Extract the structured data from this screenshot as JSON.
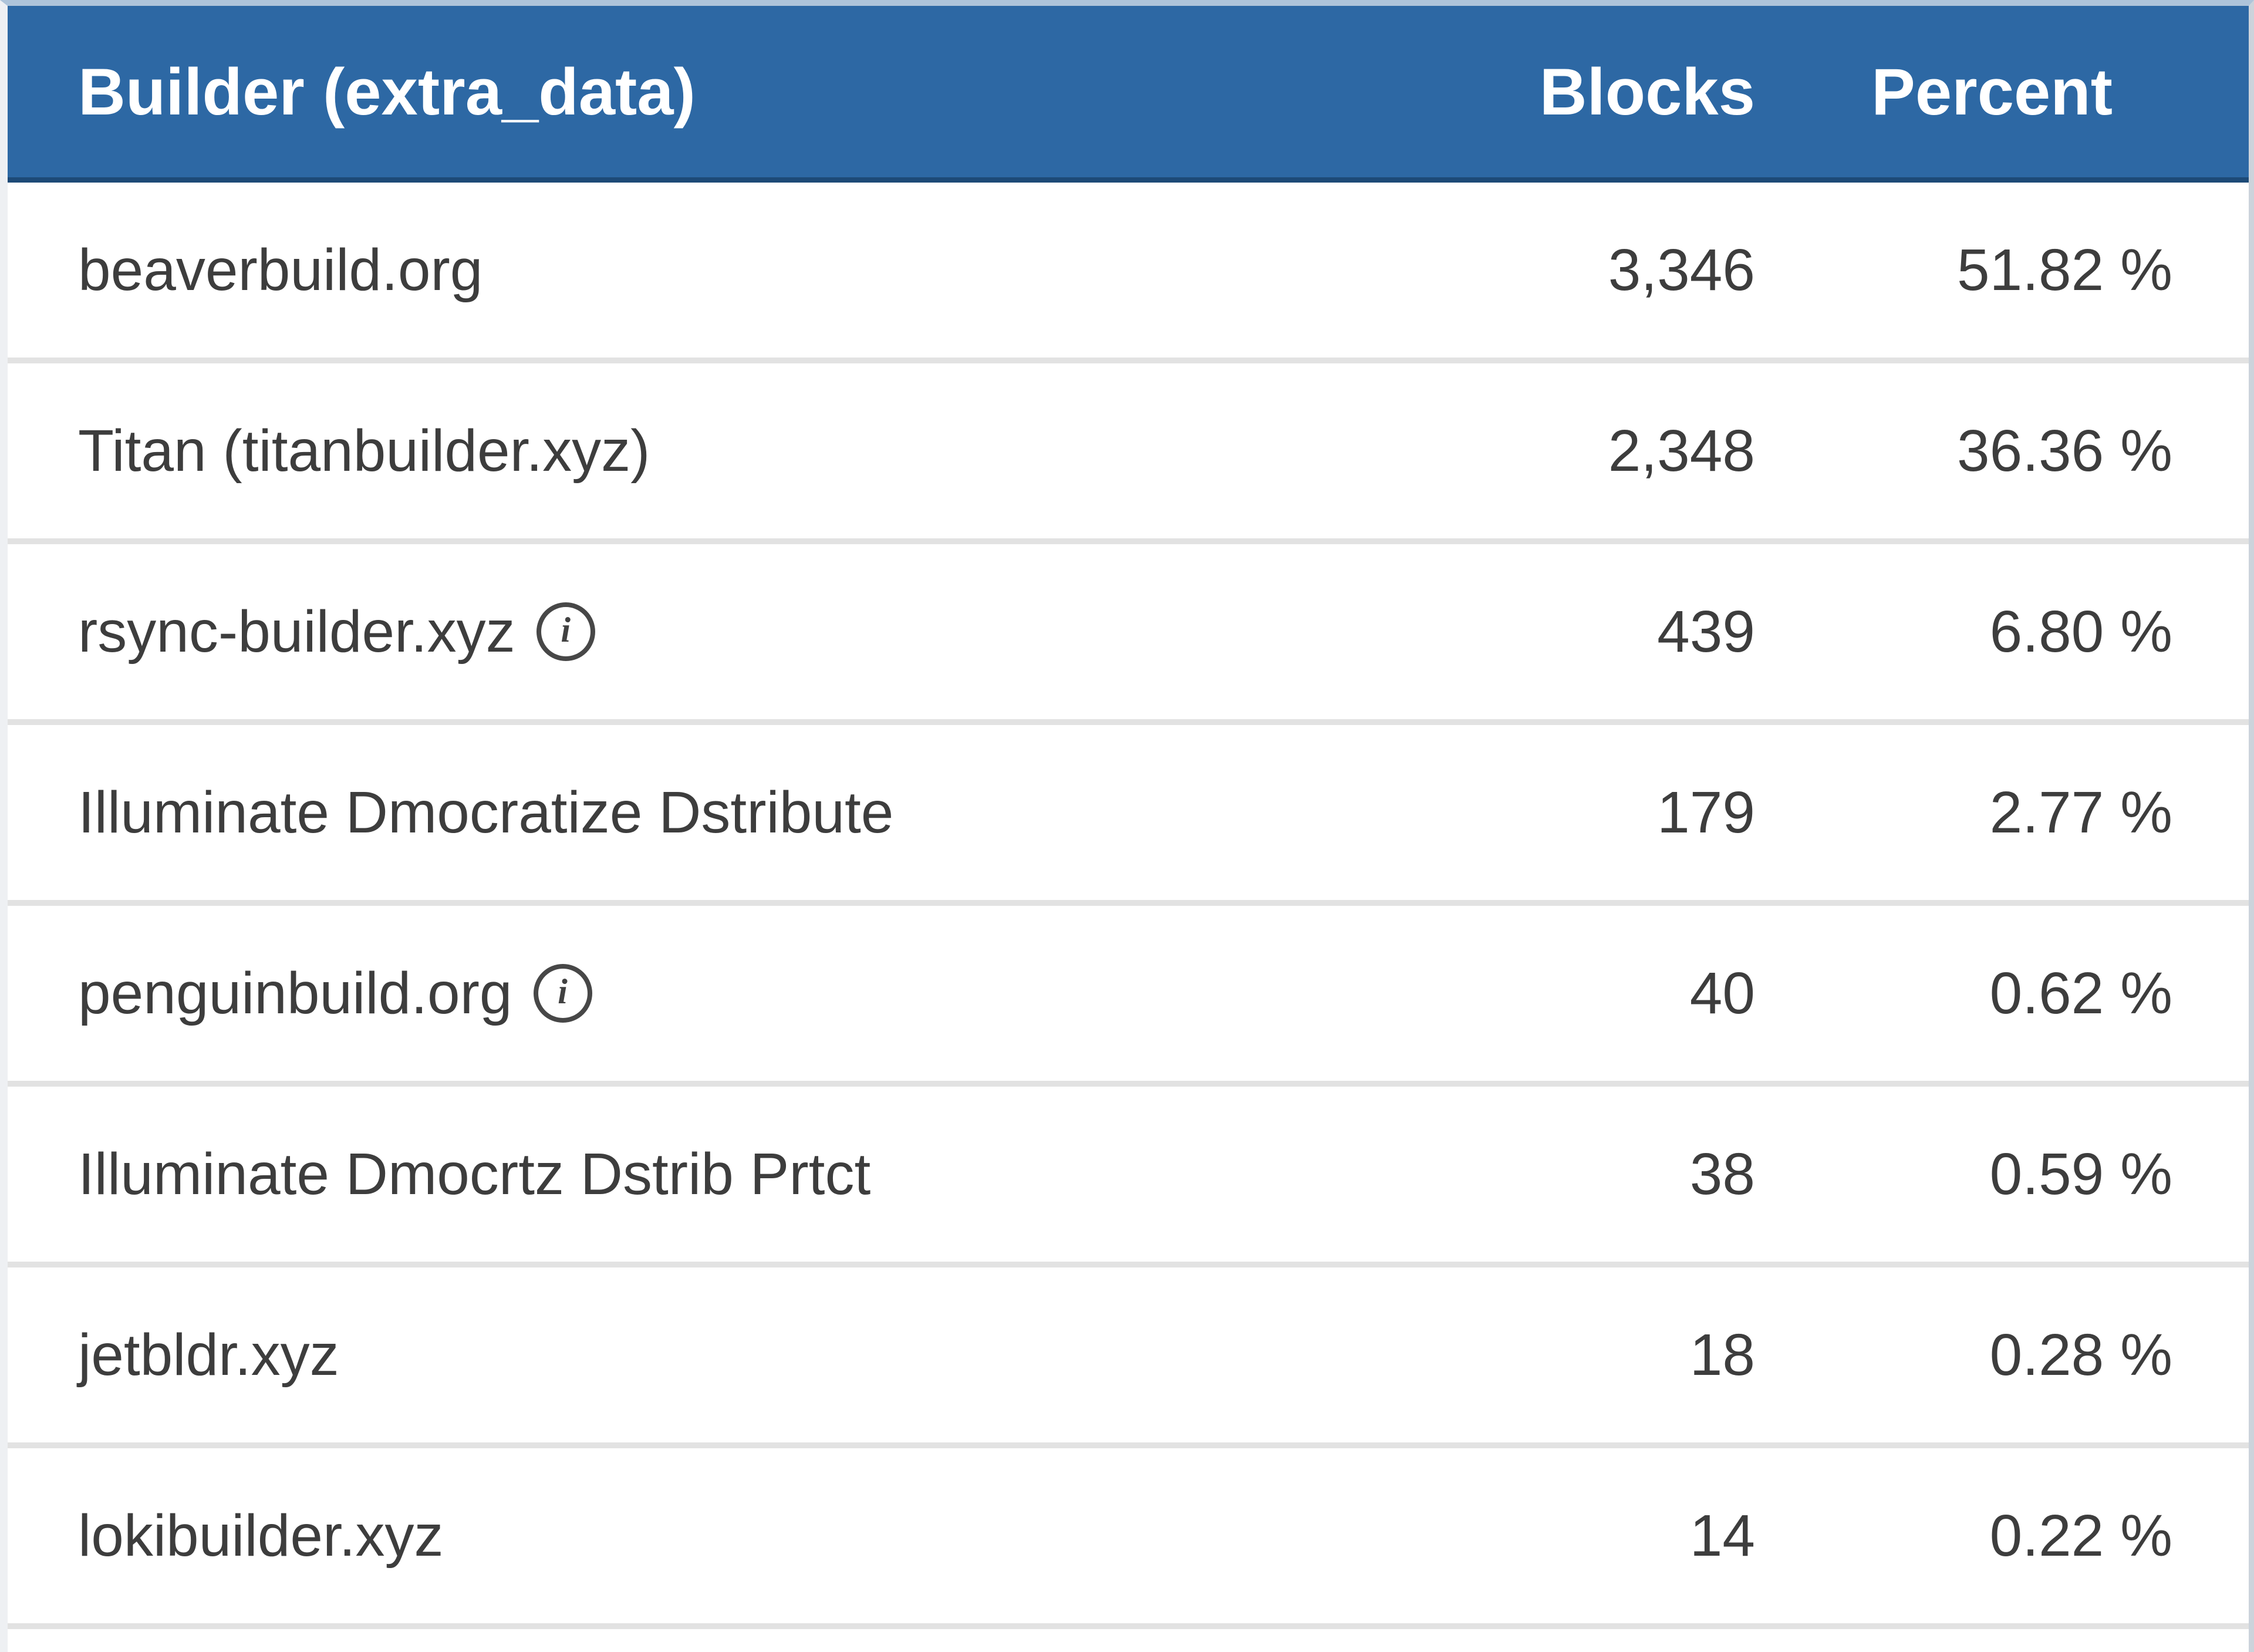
{
  "table": {
    "columns": [
      {
        "key": "builder",
        "label": "Builder (extra_data)",
        "align": "left"
      },
      {
        "key": "blocks",
        "label": "Blocks",
        "align": "right"
      },
      {
        "key": "percent",
        "label": "Percent",
        "align": "right"
      }
    ],
    "rows": [
      {
        "builder": "beaverbuild.org",
        "has_info_icon": false,
        "blocks": "3,346",
        "percent": "51.82 %"
      },
      {
        "builder": "Titan (titanbuilder.xyz)",
        "has_info_icon": false,
        "blocks": "2,348",
        "percent": "36.36 %"
      },
      {
        "builder": "rsync-builder.xyz",
        "has_info_icon": true,
        "blocks": "439",
        "percent": "6.80 %"
      },
      {
        "builder": "Illuminate Dmocratize Dstribute",
        "has_info_icon": false,
        "blocks": "179",
        "percent": "2.77 %"
      },
      {
        "builder": "penguinbuild.org",
        "has_info_icon": true,
        "blocks": "40",
        "percent": "0.62 %"
      },
      {
        "builder": "Illuminate Dmocrtz Dstrib Prtct",
        "has_info_icon": false,
        "blocks": "38",
        "percent": "0.59 %"
      },
      {
        "builder": "jetbldr.xyz",
        "has_info_icon": false,
        "blocks": "18",
        "percent": "0.28 %"
      },
      {
        "builder": "lokibuilder.xyz",
        "has_info_icon": false,
        "blocks": "14",
        "percent": "0.22 %"
      }
    ],
    "colors": {
      "header_bg": "#2d68a4",
      "header_border_bottom": "#1d4a77",
      "header_text": "#ffffff",
      "row_text": "#3d3d3d",
      "row_separator": "#e2e2e2",
      "top_strip": "#aec4da"
    }
  },
  "icons": {
    "info": "i"
  }
}
